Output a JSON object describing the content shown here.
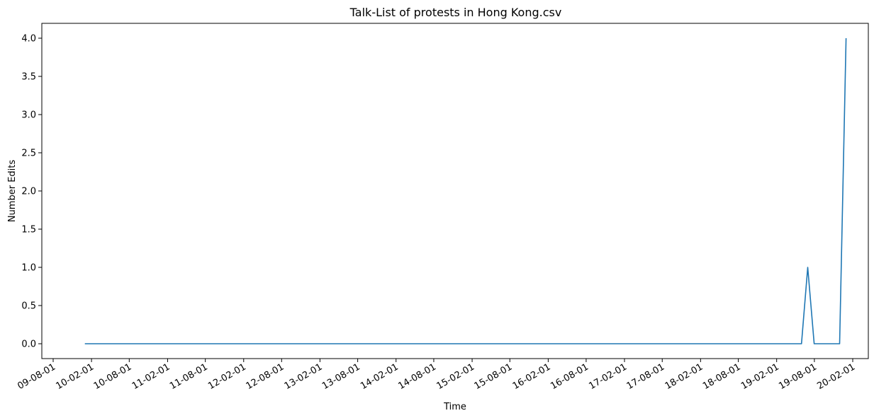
{
  "chart_data": {
    "type": "line",
    "title": "Talk-List of protests in Hong Kong.csv",
    "xlabel": "Time",
    "ylabel": "Number Edits",
    "x_ticks": [
      "09-08-01",
      "10-02-01",
      "10-08-01",
      "11-02-01",
      "11-08-01",
      "12-02-01",
      "12-08-01",
      "13-02-01",
      "13-08-01",
      "14-02-01",
      "14-08-01",
      "15-02-01",
      "15-08-01",
      "16-02-01",
      "16-08-01",
      "17-02-01",
      "17-08-01",
      "18-02-01",
      "18-08-01",
      "19-02-01",
      "19-08-01",
      "20-02-01"
    ],
    "y_ticks": [
      "0.0",
      "0.5",
      "1.0",
      "1.5",
      "2.0",
      "2.5",
      "3.0",
      "3.5",
      "4.0"
    ],
    "ylim": [
      -0.2,
      4.2
    ],
    "grid": false,
    "legend": "none",
    "colors": {
      "line": "#1f77b4"
    },
    "series": [
      {
        "x": [
          "2009-12-31",
          "2019-05-31",
          "2019-06-30",
          "2019-07-31",
          "2019-08-31",
          "2019-09-30",
          "2019-10-31",
          "2019-11-30",
          "2019-12-31"
        ],
        "values": [
          0,
          0,
          1,
          0,
          0,
          0,
          0,
          0,
          4
        ]
      }
    ]
  }
}
